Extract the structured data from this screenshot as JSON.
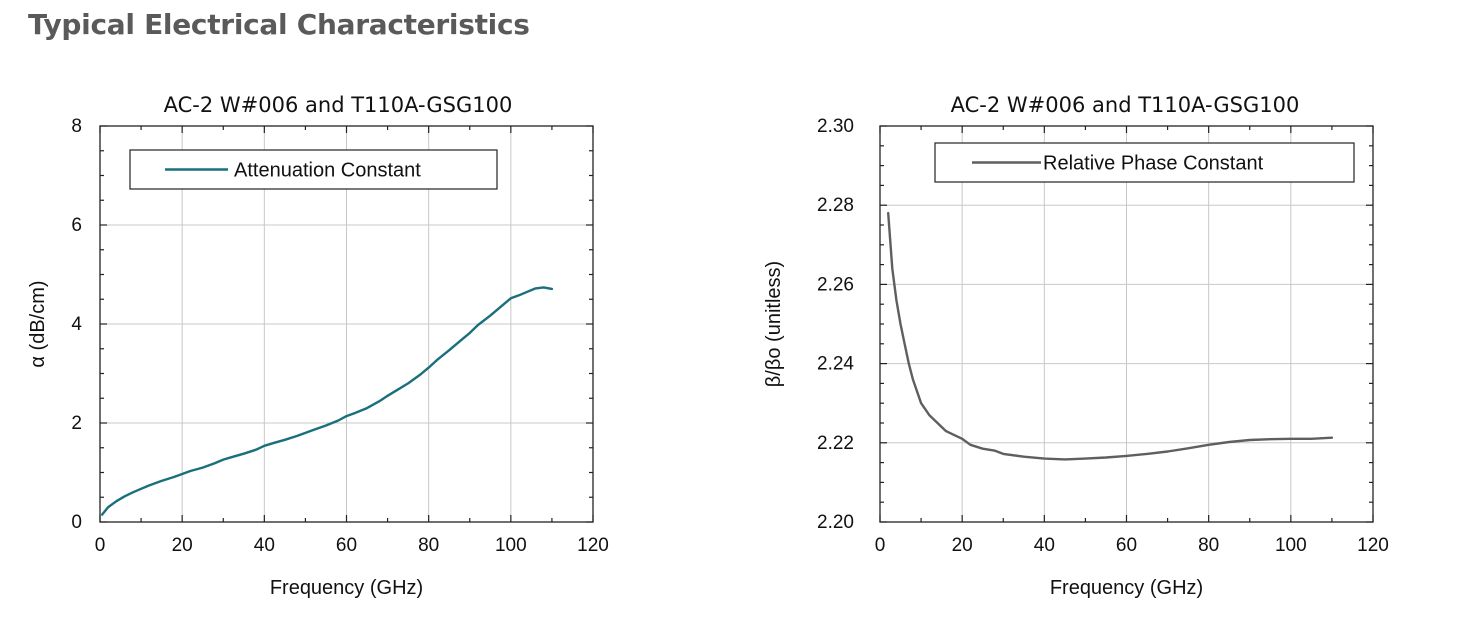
{
  "page": {
    "heading": "Typical Electrical Characteristics"
  },
  "chart_data": [
    {
      "type": "line",
      "title": "AC-2 W#006 and T110A-GSG100",
      "xlabel": "Frequency (GHz)",
      "ylabel": "α (dB/cm)",
      "xlim": [
        0,
        120
      ],
      "ylim": [
        0,
        8
      ],
      "xticks": [
        0,
        20,
        40,
        60,
        80,
        100,
        120
      ],
      "yticks": [
        0,
        2,
        4,
        6,
        8
      ],
      "x_tick_labels": [
        "0",
        "20",
        "40",
        "60",
        "80",
        "100",
        "120"
      ],
      "y_tick_labels": [
        "0",
        "2",
        "4",
        "6",
        "8"
      ],
      "grid": true,
      "legend": "top-left",
      "series": [
        {
          "name": "Attenuation Constant",
          "color": "#19707c",
          "x": [
            0.5,
            2,
            4,
            6,
            8,
            10,
            12,
            15,
            18,
            20,
            22,
            25,
            28,
            30,
            32,
            35,
            38,
            40,
            42,
            45,
            48,
            50,
            52,
            55,
            58,
            60,
            62,
            65,
            68,
            70,
            72,
            75,
            78,
            80,
            82,
            85,
            88,
            90,
            92,
            95,
            98,
            100,
            102,
            104,
            106,
            108,
            110
          ],
          "y": [
            0.15,
            0.3,
            0.42,
            0.52,
            0.6,
            0.67,
            0.74,
            0.83,
            0.91,
            0.97,
            1.03,
            1.1,
            1.19,
            1.26,
            1.31,
            1.38,
            1.46,
            1.54,
            1.59,
            1.66,
            1.74,
            1.8,
            1.86,
            1.95,
            2.05,
            2.14,
            2.2,
            2.3,
            2.44,
            2.55,
            2.65,
            2.8,
            2.98,
            3.12,
            3.27,
            3.47,
            3.68,
            3.82,
            3.98,
            4.17,
            4.38,
            4.52,
            4.58,
            4.65,
            4.72,
            4.74,
            4.71
          ]
        }
      ]
    },
    {
      "type": "line",
      "title": "AC-2 W#006 and T110A-GSG100",
      "xlabel": "Frequency (GHz)",
      "ylabel": "β/βo (unitless)",
      "xlim": [
        0,
        120
      ],
      "ylim": [
        2.2,
        2.3
      ],
      "xticks": [
        0,
        20,
        40,
        60,
        80,
        100,
        120
      ],
      "yticks": [
        2.2,
        2.22,
        2.24,
        2.26,
        2.28,
        2.3
      ],
      "x_tick_labels": [
        "0",
        "20",
        "40",
        "60",
        "80",
        "100",
        "120"
      ],
      "y_tick_labels": [
        "2.20",
        "2.22",
        "2.24",
        "2.26",
        "2.28",
        "2.30"
      ],
      "grid": true,
      "legend": "top-right",
      "series": [
        {
          "name": "Relative Phase Constant",
          "color": "#5f5f5f",
          "x": [
            2,
            3,
            4,
            5,
            6,
            7,
            8,
            9,
            10,
            12,
            14,
            16,
            18,
            20,
            22,
            25,
            28,
            30,
            35,
            40,
            45,
            50,
            55,
            60,
            65,
            70,
            75,
            80,
            85,
            90,
            95,
            100,
            105,
            110
          ],
          "y": [
            2.278,
            2.264,
            2.256,
            2.25,
            2.245,
            2.24,
            2.236,
            2.233,
            2.23,
            2.227,
            2.225,
            2.223,
            2.222,
            2.221,
            2.2195,
            2.2185,
            2.218,
            2.2172,
            2.2165,
            2.216,
            2.2158,
            2.216,
            2.2163,
            2.2167,
            2.2172,
            2.2178,
            2.2186,
            2.2195,
            2.2202,
            2.2207,
            2.2209,
            2.221,
            2.221,
            2.2213
          ]
        }
      ]
    }
  ]
}
